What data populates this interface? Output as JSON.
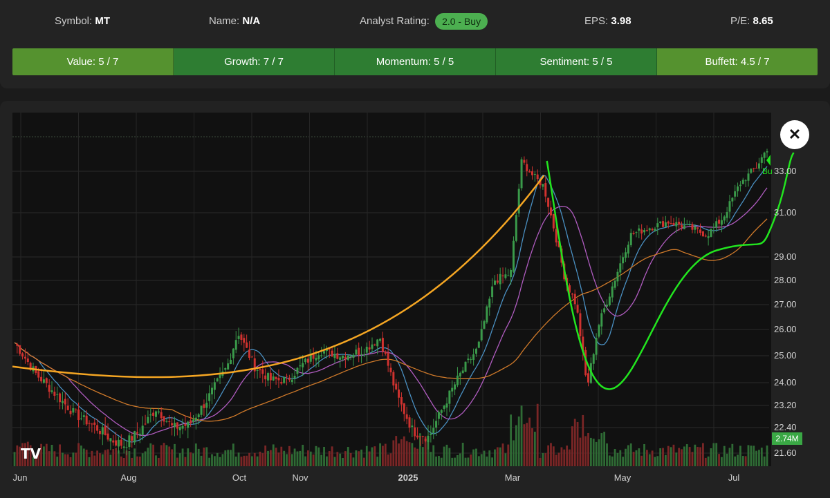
{
  "header": {
    "symbol_label": "Symbol:",
    "symbol": "MT",
    "name_label": "Name:",
    "name": "N/A",
    "rating_label": "Analyst Rating:",
    "rating": "2.0 - Buy",
    "eps_label": "EPS:",
    "eps": "3.98",
    "pe_label": "P/E:",
    "pe": "8.65"
  },
  "scores": [
    {
      "label": "Value: 5 / 7",
      "color": "#55922f"
    },
    {
      "label": "Growth: 7 / 7",
      "color": "#2e7d32"
    },
    {
      "label": "Momentum: 5 / 5",
      "color": "#2e7d32"
    },
    {
      "label": "Sentiment: 5 / 5",
      "color": "#2e7d32"
    },
    {
      "label": "Buffett: 4.5 / 7",
      "color": "#55922f"
    }
  ],
  "chart": {
    "close_icon": "close-icon",
    "close_glyph": "✕",
    "logo_text": "TV",
    "volume_badge": "2.74M",
    "buy_label": "Bu"
  },
  "chart_data": {
    "type": "candlestick",
    "title": "",
    "y_ticks": [
      "33.00",
      "31.00",
      "29.00",
      "28.00",
      "27.00",
      "26.00",
      "25.00",
      "24.00",
      "23.20",
      "22.40",
      "21.60"
    ],
    "y_tick_values": [
      33.0,
      31.0,
      29.0,
      28.0,
      27.0,
      26.0,
      25.0,
      24.0,
      23.2,
      22.4,
      21.6
    ],
    "x_ticks": [
      "Jun",
      "Aug",
      "Oct",
      "Nov",
      "2025",
      "Mar",
      "May",
      "Jul"
    ],
    "x_tick_month_index": [
      0,
      2,
      4,
      5,
      7,
      9,
      11,
      13
    ],
    "period": "June 2024 – July 2025, daily",
    "price_anchors": [
      [
        0,
        25.5
      ],
      [
        0.4,
        24.3
      ],
      [
        0.8,
        23.5
      ],
      [
        1.1,
        22.9
      ],
      [
        1.5,
        22.4
      ],
      [
        1.8,
        22.0
      ],
      [
        2.0,
        21.85
      ],
      [
        2.3,
        22.3
      ],
      [
        2.6,
        23.1
      ],
      [
        2.9,
        22.4
      ],
      [
        3.2,
        22.5
      ],
      [
        3.5,
        23.3
      ],
      [
        3.9,
        24.6
      ],
      [
        4.1,
        25.9
      ],
      [
        4.4,
        24.6
      ],
      [
        4.7,
        24.1
      ],
      [
        5.0,
        24.1
      ],
      [
        5.3,
        24.7
      ],
      [
        5.6,
        25.2
      ],
      [
        6.0,
        25.0
      ],
      [
        6.4,
        25.2
      ],
      [
        6.7,
        25.7
      ],
      [
        7.0,
        23.6
      ],
      [
        7.3,
        22.3
      ],
      [
        7.6,
        22.1
      ],
      [
        7.9,
        23.3
      ],
      [
        8.2,
        24.4
      ],
      [
        8.5,
        25.3
      ],
      [
        8.8,
        28.0
      ],
      [
        9.1,
        28.3
      ],
      [
        9.3,
        33.5
      ],
      [
        9.5,
        32.8
      ],
      [
        9.7,
        32.3
      ],
      [
        9.9,
        30.2
      ],
      [
        10.1,
        28.0
      ],
      [
        10.3,
        27.0
      ],
      [
        10.5,
        23.8
      ],
      [
        10.7,
        26.1
      ],
      [
        11.0,
        28.0
      ],
      [
        11.3,
        30.0
      ],
      [
        11.6,
        30.3
      ],
      [
        12.0,
        30.6
      ],
      [
        12.4,
        30.3
      ],
      [
        12.7,
        30.0
      ],
      [
        13.0,
        30.8
      ],
      [
        13.3,
        32.4
      ],
      [
        13.6,
        33.2
      ],
      [
        13.8,
        34.1
      ]
    ],
    "moving_averages": [
      {
        "name": "fast",
        "color": "#4a90c2"
      },
      {
        "name": "medium",
        "color": "#b05cc0"
      },
      {
        "name": "slow",
        "color": "#d07a2a"
      }
    ],
    "annotations": [
      {
        "type": "curve",
        "color": "#f5a623",
        "from": [
          0,
          24.6
        ],
        "to": [
          9.3,
          32.8
        ]
      },
      {
        "type": "curve",
        "color": "#22e51f",
        "from": [
          9.35,
          33.5
        ],
        "via": [
          10.5,
          23.8
        ],
        "to": [
          13.6,
          33.9
        ]
      }
    ],
    "last_volume": "2.74M"
  }
}
